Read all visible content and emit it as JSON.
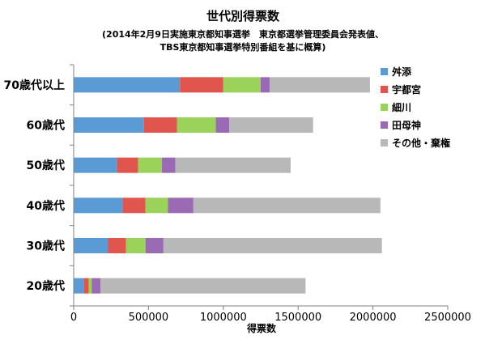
{
  "chart_data": {
    "type": "bar",
    "orientation": "horizontal",
    "stacked": true,
    "title": "世代別得票数",
    "subtitle_lines": [
      "(2014年2月9日実施東京都知事選挙　東京都選挙管理委員会発表値、",
      "TBS東京都知事選挙特別番組を基に概算)"
    ],
    "xlabel": "得票数",
    "ylabel": "",
    "xlim": [
      0,
      2500000
    ],
    "x_ticks": [
      0,
      500000,
      1000000,
      1500000,
      2000000,
      2500000
    ],
    "x_tick_labels": [
      "0",
      "500000",
      "1000000",
      "1500000",
      "2000000",
      "2500000"
    ],
    "grid": false,
    "legend_position": "right",
    "categories": [
      "70歳代以上",
      "60歳代",
      "50歳代",
      "40歳代",
      "30歳代",
      "20歳代"
    ],
    "series": [
      {
        "name": "舛添",
        "color": "#5b9bd5",
        "values": [
          710000,
          470000,
          290000,
          330000,
          230000,
          70000
        ]
      },
      {
        "name": "宇都宮",
        "color": "#e0564f",
        "values": [
          290000,
          220000,
          140000,
          150000,
          120000,
          30000
        ]
      },
      {
        "name": "細川",
        "color": "#9ad25a",
        "values": [
          250000,
          260000,
          160000,
          150000,
          130000,
          20000
        ]
      },
      {
        "name": "田母神",
        "color": "#9a6ab5",
        "values": [
          60000,
          90000,
          90000,
          170000,
          120000,
          60000
        ]
      },
      {
        "name": "その他・棄権",
        "color": "#b8b8b8",
        "values": [
          670000,
          560000,
          770000,
          1250000,
          1460000,
          1370000
        ]
      }
    ]
  }
}
